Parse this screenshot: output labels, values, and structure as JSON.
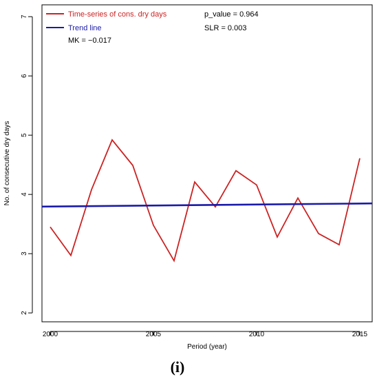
{
  "chart_data": {
    "type": "line",
    "title": "",
    "xlabel": "Period (year)",
    "ylabel": "No. of consecutive dry days",
    "xlim": [
      1999.6,
      2015.6
    ],
    "ylim": [
      1.85,
      7.2
    ],
    "xticks": [
      2000,
      2005,
      2010,
      2015
    ],
    "yticks": [
      2,
      3,
      4,
      5,
      6,
      7
    ],
    "series": [
      {
        "name": "Time-series of cons. dry days",
        "color": "#cc2222",
        "x": [
          2000,
          2001,
          2002,
          2003,
          2004,
          2005,
          2006,
          2007,
          2008,
          2009,
          2010,
          2011,
          2012,
          2013,
          2014,
          2015
        ],
        "y": [
          3.45,
          2.97,
          4.08,
          4.92,
          4.49,
          3.48,
          2.88,
          4.21,
          3.79,
          4.4,
          4.16,
          3.28,
          3.94,
          3.34,
          3.15,
          4.61
        ]
      },
      {
        "name": "Trend line",
        "color": "#1a1aaa",
        "x": [
          1999.6,
          2015.6
        ],
        "y": [
          3.795,
          3.848
        ]
      }
    ],
    "legend": {
      "position": "top-left",
      "entries": [
        "Time-series of cons. dry days",
        "Trend line"
      ]
    },
    "annotations": {
      "mk": "MK = −0.017",
      "p_value": "p_value = 0.964",
      "slr": "SLR = 0.003"
    },
    "grid": false,
    "panel_label": "(i)"
  }
}
